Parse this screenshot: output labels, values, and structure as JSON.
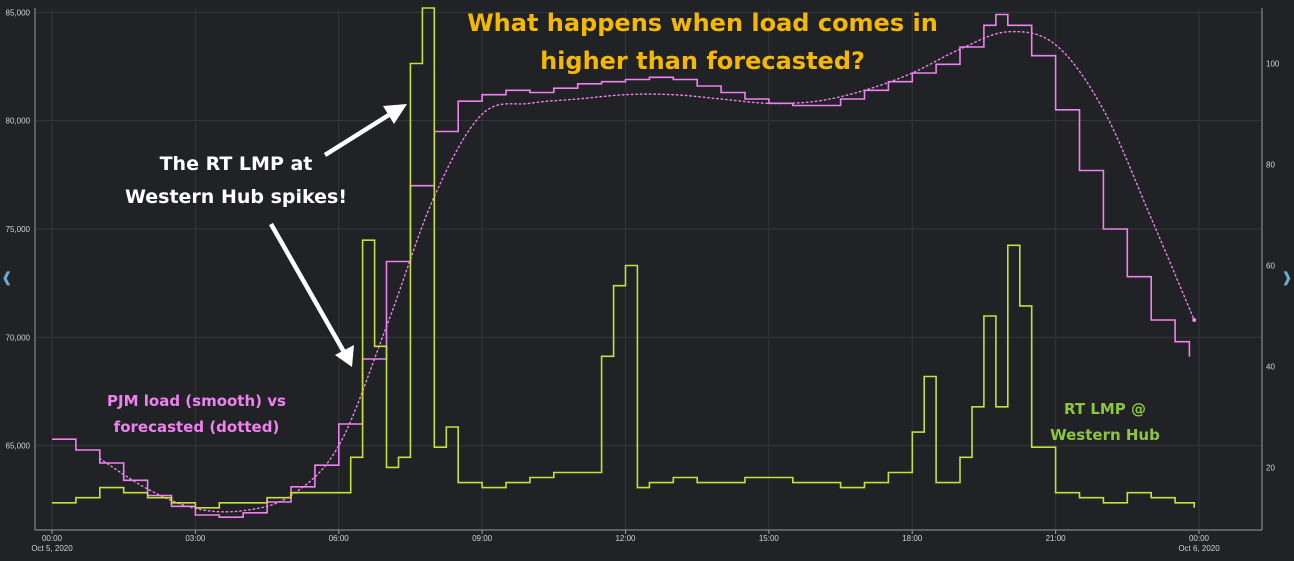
{
  "colors": {
    "background": "#212226",
    "grid": "#34363c",
    "axis": "#9a9ca0",
    "load": "#ee82ee",
    "forecast": "#ee82ee",
    "lmp": "#c5e03a",
    "title": "#f5b800",
    "annotation": "#ffffff",
    "load_label": "#ee82ee",
    "lmp_label": "#8dc63f",
    "nav_arrow": "#6aa9d6"
  },
  "annotations": {
    "title": "What happens when load comes in\nhigher than forecasted?",
    "spike_note": "The RT LMP at\nWestern Hub spikes!",
    "load_note": "PJM load (smooth) vs\nforecasted (dotted)",
    "lmp_note": "RT LMP @\nWestern Hub"
  },
  "nav": {
    "left_icon": "chevron-left-icon",
    "right_icon": "chevron-right-icon"
  },
  "chart_data": {
    "type": "line",
    "x_range": [
      "2020-10-05 00:00",
      "2020-10-06 00:00"
    ],
    "x_ticks": [
      {
        "label": "00:00",
        "sub": "Oct 5, 2020",
        "hour": 0
      },
      {
        "label": "03:00",
        "sub": "",
        "hour": 3
      },
      {
        "label": "06:00",
        "sub": "",
        "hour": 6
      },
      {
        "label": "09:00",
        "sub": "",
        "hour": 9
      },
      {
        "label": "12:00",
        "sub": "",
        "hour": 12
      },
      {
        "label": "15:00",
        "sub": "",
        "hour": 15
      },
      {
        "label": "18:00",
        "sub": "",
        "hour": 18
      },
      {
        "label": "21:00",
        "sub": "",
        "hour": 21
      },
      {
        "label": "00:00",
        "sub": "Oct 6, 2020",
        "hour": 24
      }
    ],
    "y_left": {
      "ticks": [
        "65,000",
        "70,000",
        "75,000",
        "80,000",
        "85,000"
      ],
      "tick_values": [
        65000,
        70000,
        75000,
        80000,
        85000
      ],
      "range": [
        61200,
        85200
      ]
    },
    "y_right": {
      "ticks": [
        "20",
        "40",
        "60",
        "80",
        "100"
      ],
      "tick_values": [
        20,
        40,
        60,
        80,
        100
      ],
      "range": [
        8,
        111
      ]
    },
    "series": [
      {
        "id": "load",
        "axis": "left",
        "style": "step",
        "hours": [
          0,
          0.5,
          1,
          1.5,
          2,
          2.5,
          3,
          3.5,
          4,
          4.5,
          5,
          5.5,
          6,
          6.5,
          7,
          7.5,
          8,
          8.5,
          9,
          9.5,
          10,
          10.5,
          11,
          11.5,
          12,
          12.5,
          13,
          13.5,
          14,
          14.5,
          15,
          15.5,
          16,
          16.5,
          17,
          17.5,
          18,
          18.5,
          19,
          19.5,
          19.75,
          20,
          20.5,
          21,
          21.5,
          22,
          22.5,
          23,
          23.5,
          23.8
        ],
        "values": [
          65300,
          64800,
          64200,
          63400,
          62700,
          62200,
          61800,
          61700,
          61900,
          62400,
          63100,
          64100,
          66000,
          69000,
          73500,
          77000,
          79500,
          80900,
          81200,
          81400,
          81300,
          81500,
          81700,
          81800,
          81900,
          82000,
          81900,
          81600,
          81300,
          81000,
          80800,
          80700,
          80700,
          81000,
          81400,
          81800,
          82200,
          82600,
          83400,
          84400,
          84900,
          84400,
          83000,
          80500,
          77700,
          75000,
          72800,
          70800,
          69800,
          69100
        ]
      },
      {
        "id": "forecast",
        "axis": "left",
        "style": "dotted",
        "hours": [
          1,
          2,
          3,
          4,
          5,
          6,
          7,
          8,
          9,
          10,
          11,
          12,
          13,
          14,
          15,
          16,
          17,
          18,
          19,
          20,
          21,
          22,
          23,
          23.9
        ],
        "values": [
          64400,
          63000,
          62100,
          62000,
          62700,
          65000,
          70500,
          76500,
          80300,
          80800,
          81000,
          81200,
          81200,
          81000,
          80800,
          80900,
          81400,
          82200,
          83300,
          84100,
          83500,
          80500,
          75500,
          70800
        ]
      },
      {
        "id": "lmp",
        "axis": "right",
        "style": "step",
        "hours": [
          0,
          0.5,
          1,
          1.5,
          2,
          2.5,
          3,
          3.5,
          4,
          4.5,
          5,
          5.5,
          6,
          6.25,
          6.5,
          6.75,
          7,
          7.25,
          7.5,
          7.75,
          8,
          8.25,
          8.5,
          9,
          9.5,
          10,
          10.5,
          11,
          11.5,
          11.75,
          12,
          12.25,
          12.5,
          13,
          13.5,
          14,
          14.5,
          15,
          15.5,
          16,
          16.5,
          17,
          17.5,
          18,
          18.25,
          18.5,
          19,
          19.25,
          19.5,
          19.75,
          20,
          20.25,
          20.5,
          21,
          21.5,
          22,
          22.5,
          23,
          23.5,
          23.9
        ],
        "values": [
          13,
          14,
          16,
          15,
          14,
          13,
          12,
          13,
          13,
          14,
          15,
          15,
          15,
          22,
          65,
          44,
          20,
          22,
          100,
          111,
          24,
          28,
          17,
          16,
          17,
          18,
          19,
          19,
          42,
          56,
          60,
          16,
          17,
          18,
          17,
          17,
          18,
          18,
          17,
          17,
          16,
          17,
          19,
          27,
          38,
          17,
          22,
          32,
          50,
          32,
          64,
          52,
          24,
          15,
          14,
          13,
          15,
          14,
          13,
          12
        ]
      }
    ],
    "legend": "none",
    "grid": true
  }
}
